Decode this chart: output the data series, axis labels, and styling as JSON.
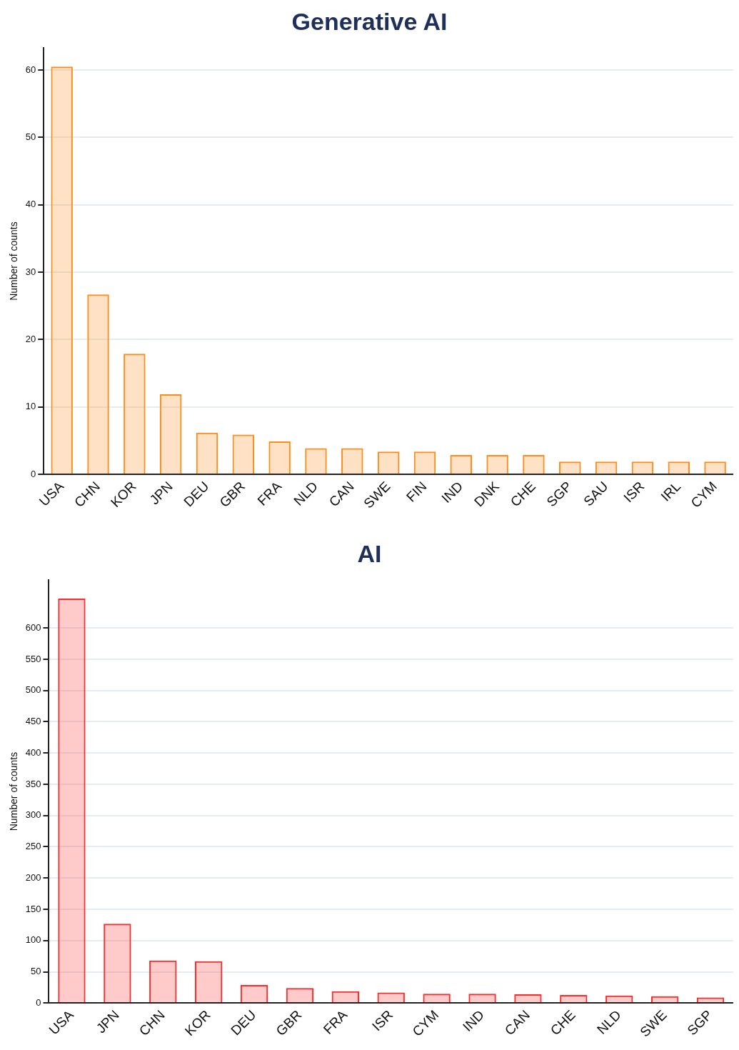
{
  "chart_data": [
    {
      "type": "bar",
      "title": "Generative AI",
      "ylabel": "Number of counts",
      "categories": [
        "USA",
        "CHN",
        "KOR",
        "JPN",
        "DEU",
        "GBR",
        "FRA",
        "NLD",
        "CAN",
        "SWE",
        "FIN",
        "IND",
        "DNK",
        "CHE",
        "SGP",
        "SAU",
        "ISR",
        "IRL",
        "CYM"
      ],
      "values": [
        60.5,
        26.7,
        17.9,
        11.9,
        6.2,
        5.9,
        4.9,
        3.9,
        3.9,
        3.4,
        3.4,
        2.9,
        2.9,
        2.9,
        1.9,
        1.9,
        1.9,
        1.9,
        1.9
      ],
      "color": "#ff8c1a",
      "ylim": [
        0,
        63.3
      ],
      "yticks": [
        0,
        10,
        20,
        30,
        40,
        50,
        60
      ],
      "grid": "y"
    },
    {
      "type": "bar",
      "title": "AI",
      "ylabel": "Number of counts",
      "categories": [
        "USA",
        "JPN",
        "CHN",
        "KOR",
        "DEU",
        "GBR",
        "FRA",
        "ISR",
        "CYM",
        "IND",
        "CAN",
        "CHE",
        "NLD",
        "SWE",
        "SGP"
      ],
      "values": [
        647,
        127,
        68,
        67,
        29,
        24,
        19,
        17,
        15,
        15,
        14,
        13,
        12,
        11,
        9
      ],
      "color": "#ff2a2a",
      "ylim": [
        0,
        677
      ],
      "yticks": [
        0,
        50,
        100,
        150,
        200,
        250,
        300,
        350,
        400,
        450,
        500,
        550,
        600
      ],
      "grid": "y"
    }
  ]
}
